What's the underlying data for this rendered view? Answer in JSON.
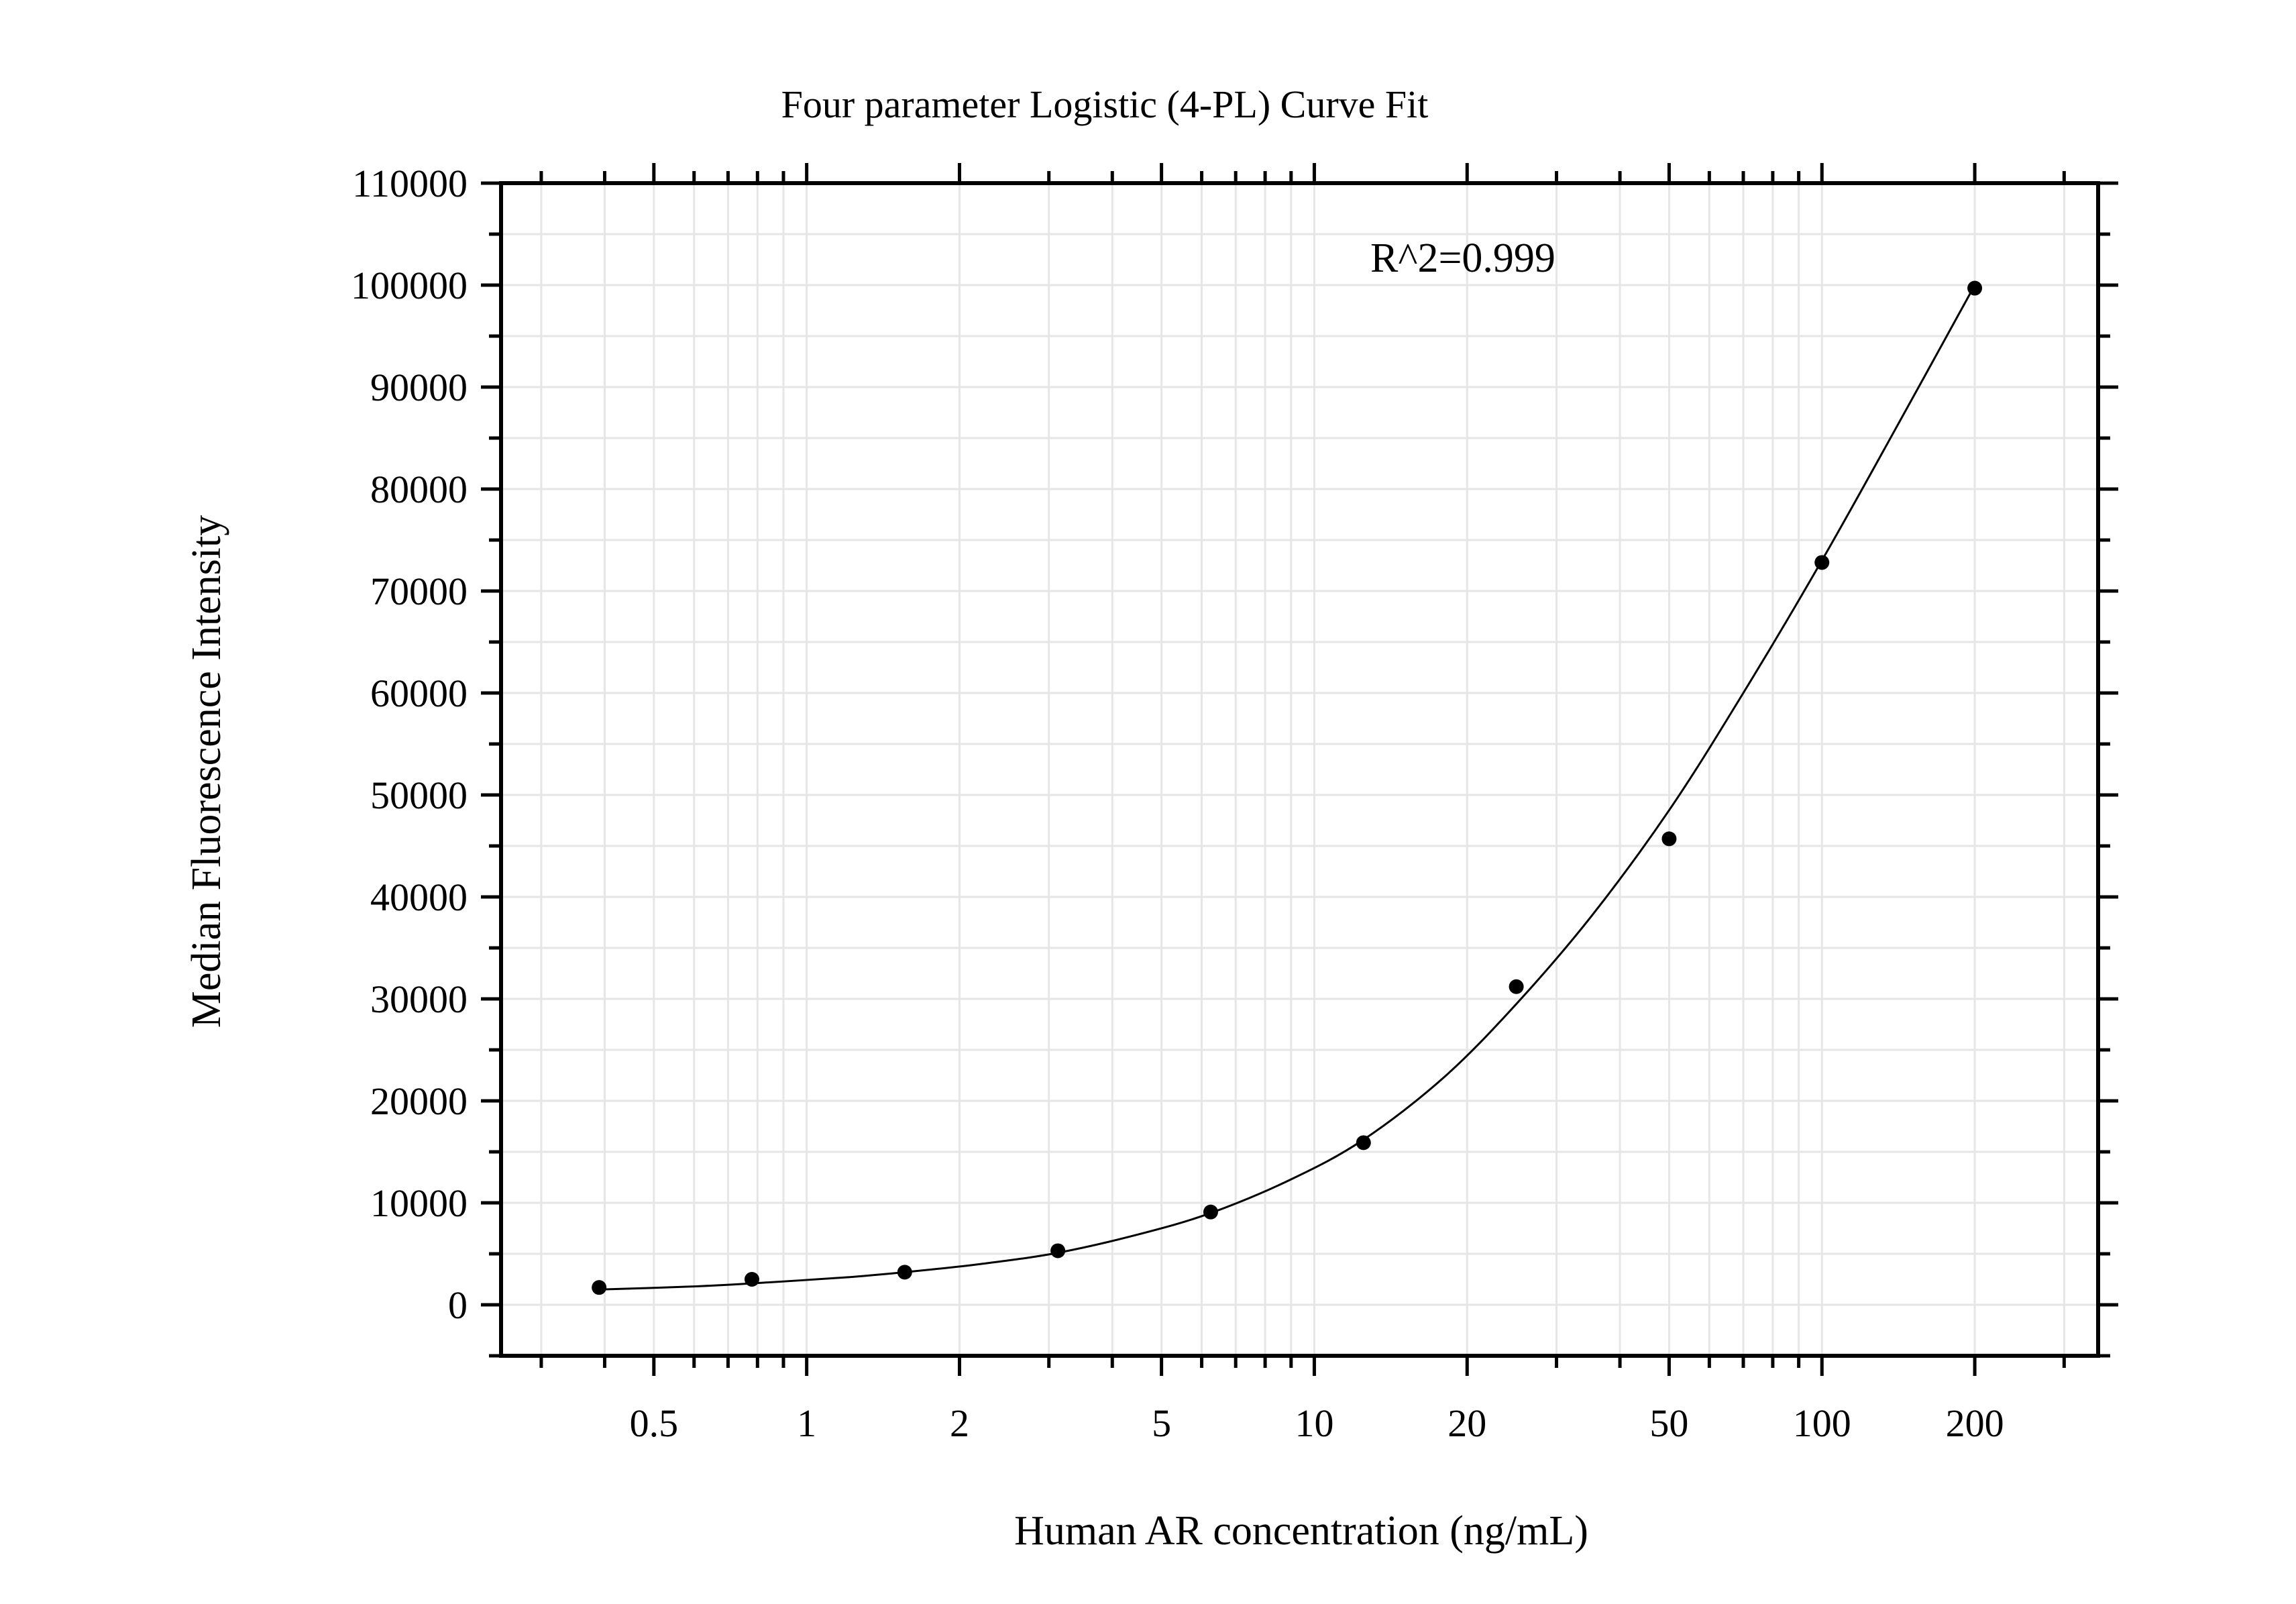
{
  "chart_data": {
    "type": "scatter",
    "title": "Four parameter Logistic (4-PL) Curve Fit",
    "xlabel": "Human AR concentration (ng/mL)",
    "ylabel": "Median Fluorescence Intensity",
    "x_scale": "log",
    "xlim": [
      0.25,
      350
    ],
    "ylim": [
      -5000,
      110000
    ],
    "x_ticks": [
      0.5,
      1,
      2,
      5,
      10,
      20,
      50,
      100,
      200
    ],
    "x_tick_labels": [
      "0.5",
      "1",
      "2",
      "5",
      "10",
      "20",
      "50",
      "100",
      "200"
    ],
    "y_ticks": [
      0,
      10000,
      20000,
      30000,
      40000,
      50000,
      60000,
      70000,
      80000,
      90000,
      100000,
      110000
    ],
    "y_tick_labels": [
      "0",
      "10000",
      "20000",
      "30000",
      "40000",
      "50000",
      "60000",
      "70000",
      "80000",
      "90000",
      "100000",
      "110000"
    ],
    "grid": true,
    "annotation": "R^2=0.999",
    "points": {
      "x": [
        0.39,
        0.78,
        1.56,
        3.125,
        6.25,
        12.5,
        25,
        50,
        100,
        200
      ],
      "y": [
        1700,
        2500,
        3200,
        5300,
        9100,
        15900,
        31200,
        45700,
        72800,
        99700
      ]
    },
    "fit_curve": {
      "x": [
        0.39,
        0.6,
        0.78,
        1.2,
        1.56,
        2.2,
        3.125,
        4.5,
        6.25,
        9,
        12.5,
        18,
        25,
        35,
        50,
        70,
        100,
        140,
        200
      ],
      "y": [
        1500,
        1800,
        2100,
        2700,
        3200,
        4000,
        5100,
        6900,
        9000,
        12300,
        16200,
        22300,
        29500,
        38000,
        48500,
        60000,
        73000,
        86000,
        100000
      ]
    },
    "colors": {
      "points": "#000000",
      "curve": "#000000",
      "grid": "#e6e6e6",
      "axes": "#000000"
    }
  }
}
